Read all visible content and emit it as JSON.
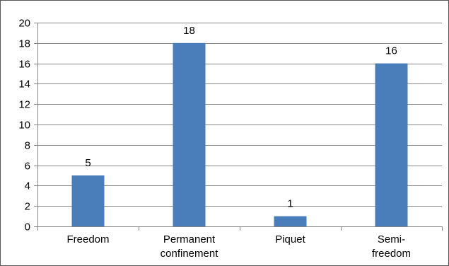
{
  "chart_data": {
    "type": "bar",
    "title": "",
    "xlabel": "",
    "ylabel": "",
    "categories": [
      [
        "Freedom"
      ],
      [
        "Permanent",
        "confinement"
      ],
      [
        "Piquet"
      ],
      [
        "Semi-",
        "freedom"
      ]
    ],
    "values": [
      5,
      18,
      1,
      16
    ],
    "data_labels": [
      "5",
      "18",
      "1",
      "16"
    ],
    "ylim": [
      0,
      20
    ],
    "yticks": [
      0,
      2,
      4,
      6,
      8,
      10,
      12,
      14,
      16,
      18,
      20
    ],
    "grid": true,
    "legend": "none",
    "bar_color": "#4a7ebb",
    "grid_color": "#868686"
  }
}
